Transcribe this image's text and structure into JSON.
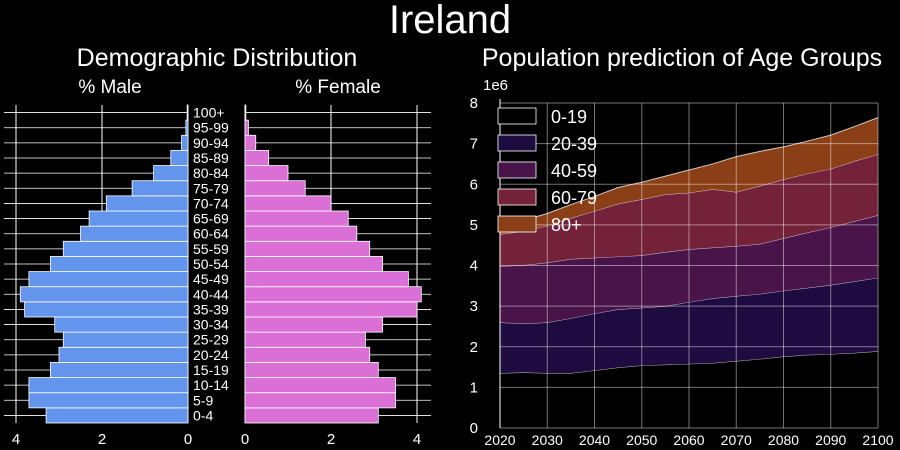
{
  "figure": {
    "title": "Ireland"
  },
  "chart_data": [
    {
      "type": "bar",
      "orientation": "horizontal",
      "title": "Demographic Distribution",
      "age_groups": [
        "0-4",
        "5-9",
        "10-14",
        "15-19",
        "20-24",
        "25-29",
        "30-34",
        "35-39",
        "40-44",
        "45-49",
        "50-54",
        "55-59",
        "60-64",
        "65-69",
        "70-74",
        "75-79",
        "80-84",
        "85-89",
        "90-94",
        "95-99",
        "100+"
      ],
      "male": {
        "label": "% Male",
        "values": [
          3.3,
          3.7,
          3.7,
          3.2,
          3.0,
          2.9,
          3.1,
          3.8,
          3.9,
          3.7,
          3.2,
          2.9,
          2.5,
          2.3,
          1.9,
          1.3,
          0.8,
          0.4,
          0.15,
          0.05,
          0.02
        ],
        "color": "#6495ED",
        "xlim": [
          4.3,
          0
        ],
        "ticks": [
          "4",
          "2",
          "0"
        ]
      },
      "female": {
        "label": "% Female",
        "values": [
          3.1,
          3.5,
          3.5,
          3.1,
          2.9,
          2.8,
          3.2,
          4.0,
          4.1,
          3.8,
          3.2,
          2.9,
          2.6,
          2.4,
          2.0,
          1.4,
          1.0,
          0.55,
          0.25,
          0.08,
          0.02
        ],
        "color": "#DA70D6",
        "xlim": [
          0,
          4.3
        ],
        "ticks": [
          "0",
          "2",
          "4"
        ]
      },
      "grid": true
    },
    {
      "type": "area",
      "stacked": true,
      "title": "Population prediction of Age Groups",
      "x": [
        2020,
        2025,
        2030,
        2035,
        2040,
        2045,
        2050,
        2055,
        2060,
        2065,
        2070,
        2075,
        2080,
        2085,
        2090,
        2095,
        2100
      ],
      "xticks": [
        "2020",
        "2030",
        "2040",
        "2050",
        "2060",
        "2070",
        "2080",
        "2090",
        "2100"
      ],
      "yticks": [
        "0",
        "1",
        "2",
        "3",
        "4",
        "5",
        "6",
        "7",
        "8"
      ],
      "ylim": [
        0,
        8000000
      ],
      "y_scale_label": "1e6",
      "series": [
        {
          "name": "0-19",
          "color": "#000000",
          "values": [
            1350000,
            1370000,
            1350000,
            1350000,
            1420000,
            1490000,
            1540000,
            1560000,
            1580000,
            1600000,
            1650000,
            1700000,
            1760000,
            1800000,
            1820000,
            1850000,
            1890000
          ]
        },
        {
          "name": "20-39",
          "color": "#1E0B3F",
          "values": [
            1250000,
            1200000,
            1250000,
            1350000,
            1400000,
            1430000,
            1420000,
            1440000,
            1520000,
            1590000,
            1600000,
            1600000,
            1620000,
            1650000,
            1700000,
            1760000,
            1810000
          ]
        },
        {
          "name": "40-59",
          "color": "#491449",
          "values": [
            1380000,
            1440000,
            1470000,
            1460000,
            1370000,
            1300000,
            1290000,
            1330000,
            1300000,
            1250000,
            1230000,
            1230000,
            1290000,
            1360000,
            1420000,
            1480000,
            1540000
          ]
        },
        {
          "name": "60-79",
          "color": "#74213A",
          "values": [
            790000,
            840000,
            910000,
            1010000,
            1150000,
            1300000,
            1380000,
            1420000,
            1390000,
            1440000,
            1330000,
            1430000,
            1450000,
            1450000,
            1440000,
            1480000,
            1500000
          ]
        },
        {
          "name": "80+",
          "color": "#8B3F16",
          "values": [
            200000,
            260000,
            300000,
            330000,
            360000,
            400000,
            420000,
            450000,
            560000,
            620000,
            870000,
            850000,
            800000,
            800000,
            830000,
            850000,
            900000
          ]
        }
      ],
      "legend_position": "upper-left",
      "grid": true
    }
  ]
}
